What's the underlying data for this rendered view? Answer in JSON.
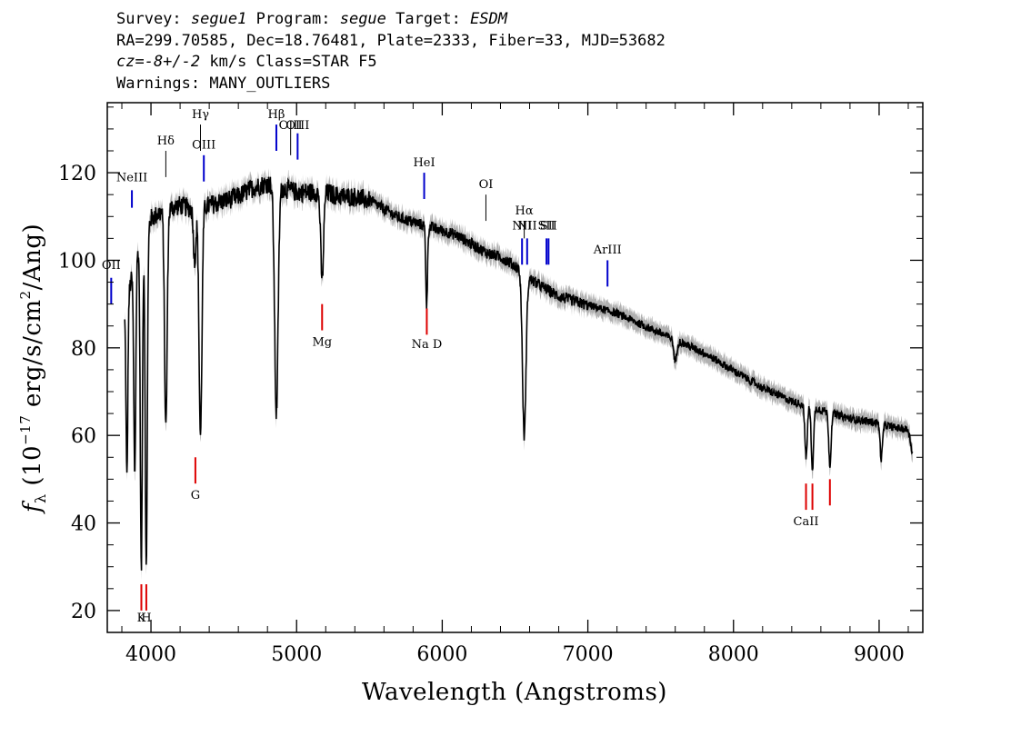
{
  "header": {
    "survey_label": "Survey:",
    "survey": "segue1",
    "program_label": "Program:",
    "program": "segue",
    "target_label": "Target:",
    "target": "ESDM",
    "line2": "RA=299.70585, Dec=18.76481, Plate=2333, Fiber=33, MJD=53682",
    "cz": "cz=-8+/-2",
    "cz_units_class": "km/s Class=STAR F5",
    "warnings": "Warnings: MANY_OUTLIERS"
  },
  "chart_data": {
    "type": "line",
    "title": "",
    "xlabel": "Wavelength (Angstroms)",
    "ylabel": "f_λ (10^-17 erg/s/cm^2/Ang)",
    "xlim": [
      3700,
      9300
    ],
    "ylim": [
      15,
      136
    ],
    "x_ticks": [
      4000,
      5000,
      6000,
      7000,
      8000,
      9000
    ],
    "y_ticks": [
      20,
      40,
      60,
      80,
      100,
      120
    ],
    "grid": false,
    "colors": {
      "spectrum": "#000000",
      "error_band": "#b0b0b0",
      "emission": "#0000cc",
      "absorption": "#dd0000",
      "hydrogen": "#000000"
    },
    "continuum": [
      [
        3820,
        88
      ],
      [
        3900,
        102
      ],
      [
        4000,
        110
      ],
      [
        4100,
        112
      ],
      [
        4200,
        113
      ],
      [
        4300,
        112
      ],
      [
        4400,
        113
      ],
      [
        4500,
        114
      ],
      [
        4600,
        115
      ],
      [
        4700,
        117
      ],
      [
        4800,
        118
      ],
      [
        4900,
        117
      ],
      [
        5000,
        116
      ],
      [
        5100,
        116
      ],
      [
        5200,
        116
      ],
      [
        5300,
        115
      ],
      [
        5400,
        115
      ],
      [
        5500,
        114
      ],
      [
        5600,
        112
      ],
      [
        5700,
        110
      ],
      [
        5800,
        109
      ],
      [
        5900,
        108
      ],
      [
        6000,
        107
      ],
      [
        6100,
        106
      ],
      [
        6200,
        104
      ],
      [
        6300,
        102
      ],
      [
        6400,
        101
      ],
      [
        6500,
        99
      ],
      [
        6600,
        96
      ],
      [
        6700,
        94
      ],
      [
        6800,
        92
      ],
      [
        6900,
        91
      ],
      [
        7000,
        90
      ],
      [
        7200,
        88
      ],
      [
        7400,
        85
      ],
      [
        7600,
        82
      ],
      [
        7800,
        79
      ],
      [
        8000,
        75
      ],
      [
        8200,
        71
      ],
      [
        8400,
        68
      ],
      [
        8600,
        66
      ],
      [
        8800,
        64
      ],
      [
        9000,
        63
      ],
      [
        9100,
        62
      ],
      [
        9200,
        61.5
      ],
      [
        9230,
        56
      ]
    ],
    "absorption_features": [
      {
        "name": "H-eta",
        "x": 3835,
        "depth": 40,
        "width": 6
      },
      {
        "name": "H-zeta",
        "x": 3889,
        "depth": 48,
        "width": 7
      },
      {
        "name": "Ca K",
        "x": 3934,
        "depth": 75,
        "width": 7
      },
      {
        "name": "Ca H",
        "x": 3968,
        "depth": 78,
        "width": 7
      },
      {
        "name": "H-delta",
        "x": 4102,
        "depth": 50,
        "width": 9
      },
      {
        "name": "G",
        "x": 4300,
        "depth": 12,
        "width": 8
      },
      {
        "name": "H-gamma",
        "x": 4340,
        "depth": 52,
        "width": 10
      },
      {
        "name": "H-beta",
        "x": 4861,
        "depth": 52,
        "width": 12
      },
      {
        "name": "Mg",
        "x": 5175,
        "depth": 20,
        "width": 10
      },
      {
        "name": "Na D",
        "x": 5893,
        "depth": 18,
        "width": 6
      },
      {
        "name": "H-alpha",
        "x": 6563,
        "depth": 37,
        "width": 12
      },
      {
        "name": "CaII 8498",
        "x": 8498,
        "depth": 12,
        "width": 8
      },
      {
        "name": "CaII 8542",
        "x": 8542,
        "depth": 14,
        "width": 8
      },
      {
        "name": "CaII 8662",
        "x": 8662,
        "depth": 12,
        "width": 8
      },
      {
        "name": "atm 9015",
        "x": 9015,
        "depth": 8,
        "width": 8
      },
      {
        "name": "atm 7600",
        "x": 7600,
        "depth": 5,
        "width": 10
      }
    ],
    "line_markers": [
      {
        "label": "OII",
        "x": 3727,
        "kind": "emission",
        "y_low": 90,
        "y_high": 96,
        "label_y": 98
      },
      {
        "label": "NeIII",
        "x": 3869,
        "kind": "emission",
        "y_low": 112,
        "y_high": 116,
        "label_y": 118
      },
      {
        "label": "Hδ",
        "x": 4102,
        "kind": "hydrogen",
        "y_low": 119,
        "y_high": 125,
        "label_y": 126.5
      },
      {
        "label": "Hγ",
        "x": 4340,
        "kind": "hydrogen",
        "y_low": 125,
        "y_high": 131,
        "label_y": 132.5
      },
      {
        "label": "OIII",
        "x": 4363,
        "kind": "emission",
        "y_low": 118,
        "y_high": 124,
        "label_y": 125.5
      },
      {
        "label": "Hβ",
        "x": 4861,
        "kind": "emission",
        "y_low": 125,
        "y_high": 131,
        "label_y": 132.5
      },
      {
        "label": "OIII",
        "x": 4959,
        "kind": "hydrogen",
        "y_low": 124,
        "y_high": 130,
        "label_y": 130
      },
      {
        "label": "OIII",
        "x": 5007,
        "kind": "emission",
        "y_low": 123,
        "y_high": 129,
        "label_y": 130
      },
      {
        "label": "HeI",
        "x": 5876,
        "kind": "emission",
        "y_low": 114,
        "y_high": 120,
        "label_y": 121.5
      },
      {
        "label": "OI",
        "x": 6300,
        "kind": "hydrogen",
        "y_low": 109,
        "y_high": 115,
        "label_y": 116.5
      },
      {
        "label": "NII",
        "x": 6548,
        "kind": "emission",
        "y_low": 99,
        "y_high": 105,
        "label_y": 107
      },
      {
        "label": "Hα",
        "x": 6563,
        "kind": "hydrogen",
        "y_low": 105,
        "y_high": 109,
        "label_y": 110.5
      },
      {
        "label": "NII",
        "x": 6583,
        "kind": "emission",
        "y_low": 99,
        "y_high": 105,
        "label_y": 107
      },
      {
        "label": "SII",
        "x": 6716,
        "kind": "emission",
        "y_low": 99,
        "y_high": 105,
        "label_y": 107
      },
      {
        "label": "SII",
        "x": 6730,
        "kind": "emission",
        "y_low": 99,
        "y_high": 105,
        "label_y": 107
      },
      {
        "label": "ArIII",
        "x": 7135,
        "kind": "emission",
        "y_low": 94,
        "y_high": 100,
        "label_y": 101.5
      },
      {
        "label": "K",
        "x": 3934,
        "kind": "absorption",
        "y_low": 20,
        "y_high": 26,
        "label_y": 17.5
      },
      {
        "label": "H",
        "x": 3968,
        "kind": "absorption",
        "y_low": 20,
        "y_high": 26,
        "label_y": 17.5
      },
      {
        "label": "G",
        "x": 4305,
        "kind": "absorption",
        "y_low": 49,
        "y_high": 55,
        "label_y": 45.5
      },
      {
        "label": "Mg",
        "x": 5175,
        "kind": "absorption",
        "y_low": 84,
        "y_high": 90,
        "label_y": 80.5
      },
      {
        "label": "Na D",
        "x": 5894,
        "kind": "absorption",
        "y_low": 83,
        "y_high": 89,
        "label_y": 80
      },
      {
        "label": "CaII",
        "x": 8498,
        "kind": "absorption",
        "y_low": 43,
        "y_high": 49,
        "label_y": 39.5
      },
      {
        "label": "",
        "x": 8542,
        "kind": "absorption",
        "y_low": 43,
        "y_high": 49,
        "label_y": 0
      },
      {
        "label": "",
        "x": 8662,
        "kind": "absorption",
        "y_low": 44,
        "y_high": 50,
        "label_y": 0
      }
    ]
  }
}
